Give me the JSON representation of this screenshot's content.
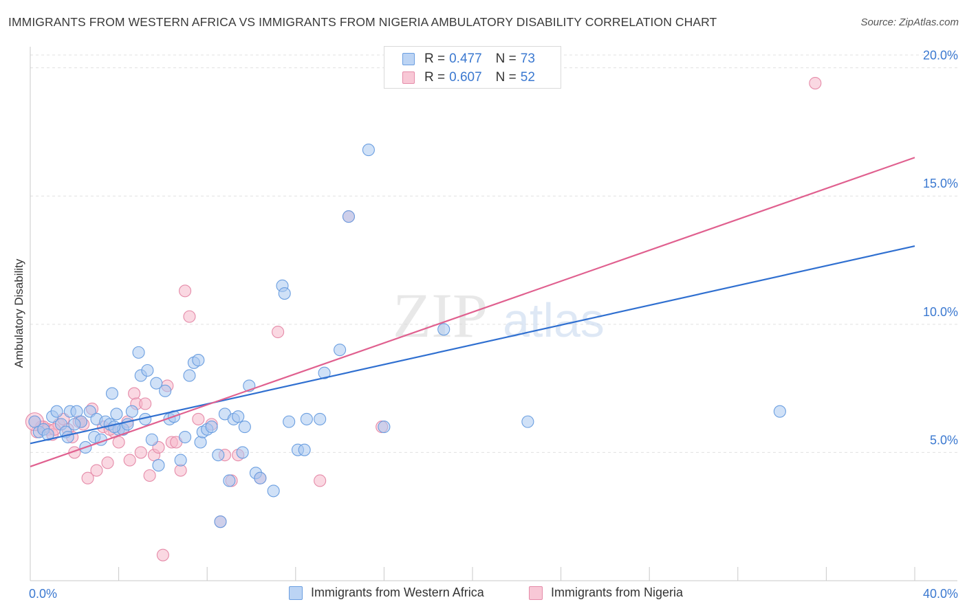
{
  "header": {
    "title": "IMMIGRANTS FROM WESTERN AFRICA VS IMMIGRANTS FROM NIGERIA AMBULATORY DISABILITY CORRELATION CHART",
    "source": "Source: ZipAtlas.com"
  },
  "watermark": {
    "zip": "ZIP",
    "atlas": "atlas"
  },
  "legend": {
    "series1": {
      "r_label": "R =",
      "r_value": "0.477",
      "n_label": "N =",
      "n_value": "73"
    },
    "series2": {
      "r_label": "R =",
      "r_value": "0.607",
      "n_label": "N =",
      "n_value": "52"
    }
  },
  "colors": {
    "blue_fill": "#a9c8f0",
    "blue_stroke": "#6a9ee0",
    "blue_line": "#2f6fd0",
    "pink_fill": "#f5b8cb",
    "pink_stroke": "#e58aa8",
    "pink_line": "#e0608f",
    "axis_text": "#3a78d0",
    "grid": "#e0e0e0"
  },
  "chart_data": {
    "type": "scatter",
    "title": "IMMIGRANTS FROM WESTERN AFRICA VS IMMIGRANTS FROM NIGERIA AMBULATORY DISABILITY CORRELATION CHART",
    "xlabel": "",
    "ylabel": "Ambulatory Disability",
    "xlim": [
      0,
      40
    ],
    "ylim": [
      0,
      20.5
    ],
    "x_tick_labels": [
      "0.0%",
      "40.0%"
    ],
    "y_ticks": [
      5,
      10,
      15,
      20
    ],
    "y_tick_labels": [
      "5.0%",
      "10.0%",
      "15.0%",
      "20.0%"
    ],
    "grid": "horizontal dashed",
    "legend_position": "top-center",
    "series": [
      {
        "name": "Immigrants from Western Africa",
        "r": 0.477,
        "n": 73,
        "trend": {
          "x": [
            0,
            40
          ],
          "y": [
            5.35,
            13.05
          ]
        },
        "points": [
          [
            0.2,
            6.2
          ],
          [
            0.4,
            5.8
          ],
          [
            0.6,
            5.9
          ],
          [
            0.8,
            5.7
          ],
          [
            1.0,
            6.4
          ],
          [
            1.2,
            6.6
          ],
          [
            1.4,
            6.1
          ],
          [
            1.6,
            5.8
          ],
          [
            1.7,
            5.6
          ],
          [
            1.8,
            6.6
          ],
          [
            2.1,
            6.6
          ],
          [
            2.3,
            6.2
          ],
          [
            2.5,
            5.2
          ],
          [
            2.7,
            6.6
          ],
          [
            2.9,
            5.6
          ],
          [
            3.0,
            6.3
          ],
          [
            3.2,
            5.5
          ],
          [
            3.4,
            6.2
          ],
          [
            3.6,
            6.1
          ],
          [
            3.7,
            7.3
          ],
          [
            3.9,
            6.5
          ],
          [
            4.0,
            5.9
          ],
          [
            4.2,
            5.9
          ],
          [
            4.4,
            6.1
          ],
          [
            4.6,
            6.6
          ],
          [
            4.9,
            8.9
          ],
          [
            5.0,
            8.0
          ],
          [
            5.2,
            6.3
          ],
          [
            5.3,
            8.2
          ],
          [
            5.5,
            5.5
          ],
          [
            5.7,
            7.7
          ],
          [
            5.8,
            4.5
          ],
          [
            6.1,
            7.4
          ],
          [
            6.3,
            6.3
          ],
          [
            6.5,
            6.4
          ],
          [
            6.8,
            4.7
          ],
          [
            7.0,
            5.6
          ],
          [
            7.2,
            8.0
          ],
          [
            7.4,
            8.5
          ],
          [
            7.6,
            8.6
          ],
          [
            7.7,
            5.4
          ],
          [
            7.8,
            5.8
          ],
          [
            8.0,
            5.9
          ],
          [
            8.2,
            6.0
          ],
          [
            8.5,
            4.9
          ],
          [
            8.8,
            6.5
          ],
          [
            9.0,
            3.9
          ],
          [
            9.2,
            6.3
          ],
          [
            9.4,
            6.4
          ],
          [
            9.6,
            5.0
          ],
          [
            9.7,
            6.0
          ],
          [
            9.9,
            7.6
          ],
          [
            10.2,
            4.2
          ],
          [
            10.4,
            4.0
          ],
          [
            11.0,
            3.5
          ],
          [
            11.4,
            11.5
          ],
          [
            11.5,
            11.2
          ],
          [
            11.7,
            6.2
          ],
          [
            12.1,
            5.1
          ],
          [
            12.4,
            5.1
          ],
          [
            12.5,
            6.3
          ],
          [
            13.1,
            6.3
          ],
          [
            13.3,
            8.1
          ],
          [
            14.0,
            9.0
          ],
          [
            14.4,
            14.2
          ],
          [
            15.3,
            16.8
          ],
          [
            16.0,
            6.0
          ],
          [
            18.7,
            9.8
          ],
          [
            22.5,
            6.2
          ],
          [
            33.9,
            6.6
          ],
          [
            8.6,
            2.3
          ],
          [
            3.8,
            6.0
          ],
          [
            2.0,
            6.1
          ]
        ]
      },
      {
        "name": "Immigrants from Nigeria",
        "r": 0.607,
        "n": 52,
        "trend": {
          "x": [
            0,
            40
          ],
          "y": [
            4.45,
            16.5
          ]
        },
        "points": [
          [
            0.2,
            6.2
          ],
          [
            0.5,
            6.0
          ],
          [
            0.8,
            5.9
          ],
          [
            1.0,
            5.7
          ],
          [
            1.3,
            6.1
          ],
          [
            1.5,
            6.3
          ],
          [
            1.7,
            5.9
          ],
          [
            1.9,
            5.6
          ],
          [
            2.0,
            5.0
          ],
          [
            2.2,
            6.2
          ],
          [
            2.4,
            6.1
          ],
          [
            2.6,
            4.0
          ],
          [
            2.8,
            6.7
          ],
          [
            3.0,
            4.3
          ],
          [
            3.3,
            6.0
          ],
          [
            3.5,
            4.6
          ],
          [
            3.8,
            5.8
          ],
          [
            4.0,
            5.4
          ],
          [
            4.2,
            5.9
          ],
          [
            4.5,
            4.7
          ],
          [
            4.7,
            7.3
          ],
          [
            4.8,
            6.9
          ],
          [
            5.0,
            5.0
          ],
          [
            5.2,
            6.9
          ],
          [
            5.4,
            4.1
          ],
          [
            5.6,
            4.9
          ],
          [
            5.8,
            5.2
          ],
          [
            6.0,
            1.0
          ],
          [
            6.2,
            7.6
          ],
          [
            6.4,
            5.4
          ],
          [
            6.6,
            5.4
          ],
          [
            6.8,
            4.3
          ],
          [
            7.0,
            11.3
          ],
          [
            7.2,
            10.3
          ],
          [
            7.6,
            6.3
          ],
          [
            8.2,
            6.1
          ],
          [
            8.6,
            2.3
          ],
          [
            8.8,
            4.9
          ],
          [
            9.1,
            3.9
          ],
          [
            9.4,
            4.9
          ],
          [
            10.4,
            4.0
          ],
          [
            11.2,
            9.7
          ],
          [
            13.1,
            3.9
          ],
          [
            14.4,
            14.2
          ],
          [
            15.9,
            6.0
          ],
          [
            35.5,
            19.4
          ],
          [
            3.6,
            5.9
          ],
          [
            1.1,
            5.9
          ],
          [
            4.4,
            6.2
          ],
          [
            2.3,
            6.2
          ],
          [
            0.3,
            5.8
          ],
          [
            0.6,
            6.0
          ]
        ]
      }
    ]
  },
  "bottom_legend": {
    "series1_label": "Immigrants from Western Africa",
    "series2_label": "Immigrants from Nigeria"
  }
}
